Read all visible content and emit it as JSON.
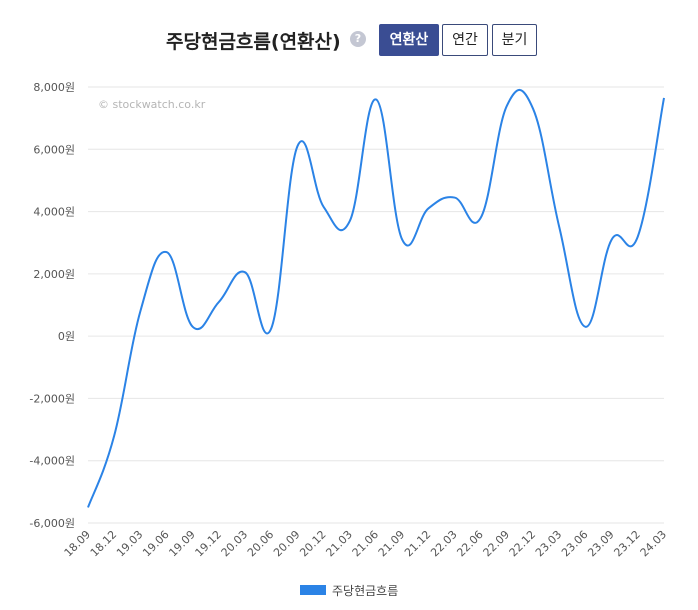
{
  "header": {
    "title": "주당현금흐름(연환산)",
    "help_icon": "?",
    "buttons": [
      "연환산",
      "연간",
      "분기"
    ],
    "active_button": "연환산"
  },
  "watermark": "© stockwatch.co.kr",
  "colors": {
    "line": "#2b83e6",
    "active_button": "#3a4d93",
    "grid": "#e6e6e6"
  },
  "chart_data": {
    "type": "line",
    "title": "",
    "xlabel": "",
    "ylabel": "",
    "ylim": [
      -6000,
      8000
    ],
    "y_ticks": [
      8000,
      6000,
      4000,
      2000,
      0,
      -2000,
      -4000,
      -6000
    ],
    "y_tick_labels": [
      "8,000원",
      "6,000원",
      "4,000원",
      "2,000원",
      "0원",
      "-2,000원",
      "-4,000원",
      "-6,000원"
    ],
    "categories": [
      "18.09",
      "18.12",
      "19.03",
      "19.06",
      "19.09",
      "19.12",
      "20.03",
      "20.06",
      "20.09",
      "20.12",
      "21.03",
      "21.06",
      "21.09",
      "21.12",
      "22.03",
      "22.06",
      "22.09",
      "22.12",
      "23.03",
      "23.06",
      "23.09",
      "23.12",
      "24.03"
    ],
    "series": [
      {
        "name": "주당현금흐름",
        "values": [
          -5500,
          -3200,
          800,
          2700,
          300,
          1100,
          2050,
          250,
          6100,
          4150,
          3700,
          7600,
          3100,
          4100,
          4450,
          3800,
          7400,
          7300,
          3500,
          300,
          3100,
          3200,
          7650
        ]
      }
    ],
    "grid": true,
    "legend_position": "bottom"
  }
}
